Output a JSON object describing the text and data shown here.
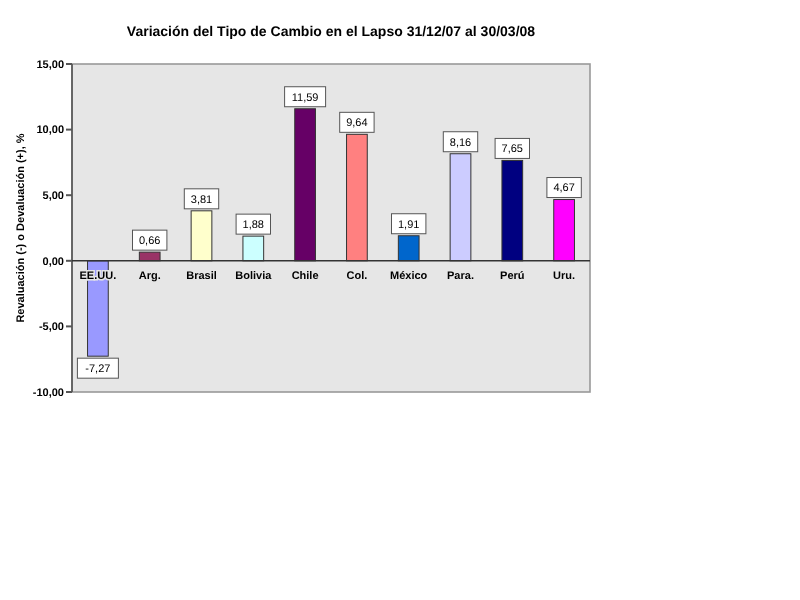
{
  "chart_data": {
    "type": "bar",
    "title": "Variación del Tipo de Cambio en el Lapso 31/12/07 al 30/03/08",
    "ylabel": "Revaluación (-) o Devaluación (+), %",
    "categories": [
      "EE.UU.",
      "Arg.",
      "Brasil",
      "Bolivia",
      "Chile",
      "Col.",
      "México",
      "Para.",
      "Perú",
      "Uru."
    ],
    "values": [
      -7.27,
      0.66,
      3.81,
      1.88,
      11.59,
      9.64,
      1.91,
      8.16,
      7.65,
      4.67
    ],
    "colors": [
      "#9999ff",
      "#993366",
      "#ffffcc",
      "#ccffff",
      "#660066",
      "#ff8080",
      "#0066cc",
      "#ccccff",
      "#000080",
      "#ff00ff"
    ],
    "value_labels": [
      "-7,27",
      "0,66",
      "3,81",
      "1,88",
      "11,59",
      "9,64",
      "1,91",
      "8,16",
      "7,65",
      "4,67"
    ],
    "ylim": [
      -10,
      15
    ],
    "yticks": [
      {
        "value": -10,
        "label": "-10,00"
      },
      {
        "value": -5,
        "label": "-5,00"
      },
      {
        "value": 0,
        "label": "0,00"
      },
      {
        "value": 5,
        "label": "5,00"
      },
      {
        "value": 10,
        "label": "10,00"
      },
      {
        "value": 15,
        "label": "15,00"
      }
    ],
    "grid": false
  }
}
